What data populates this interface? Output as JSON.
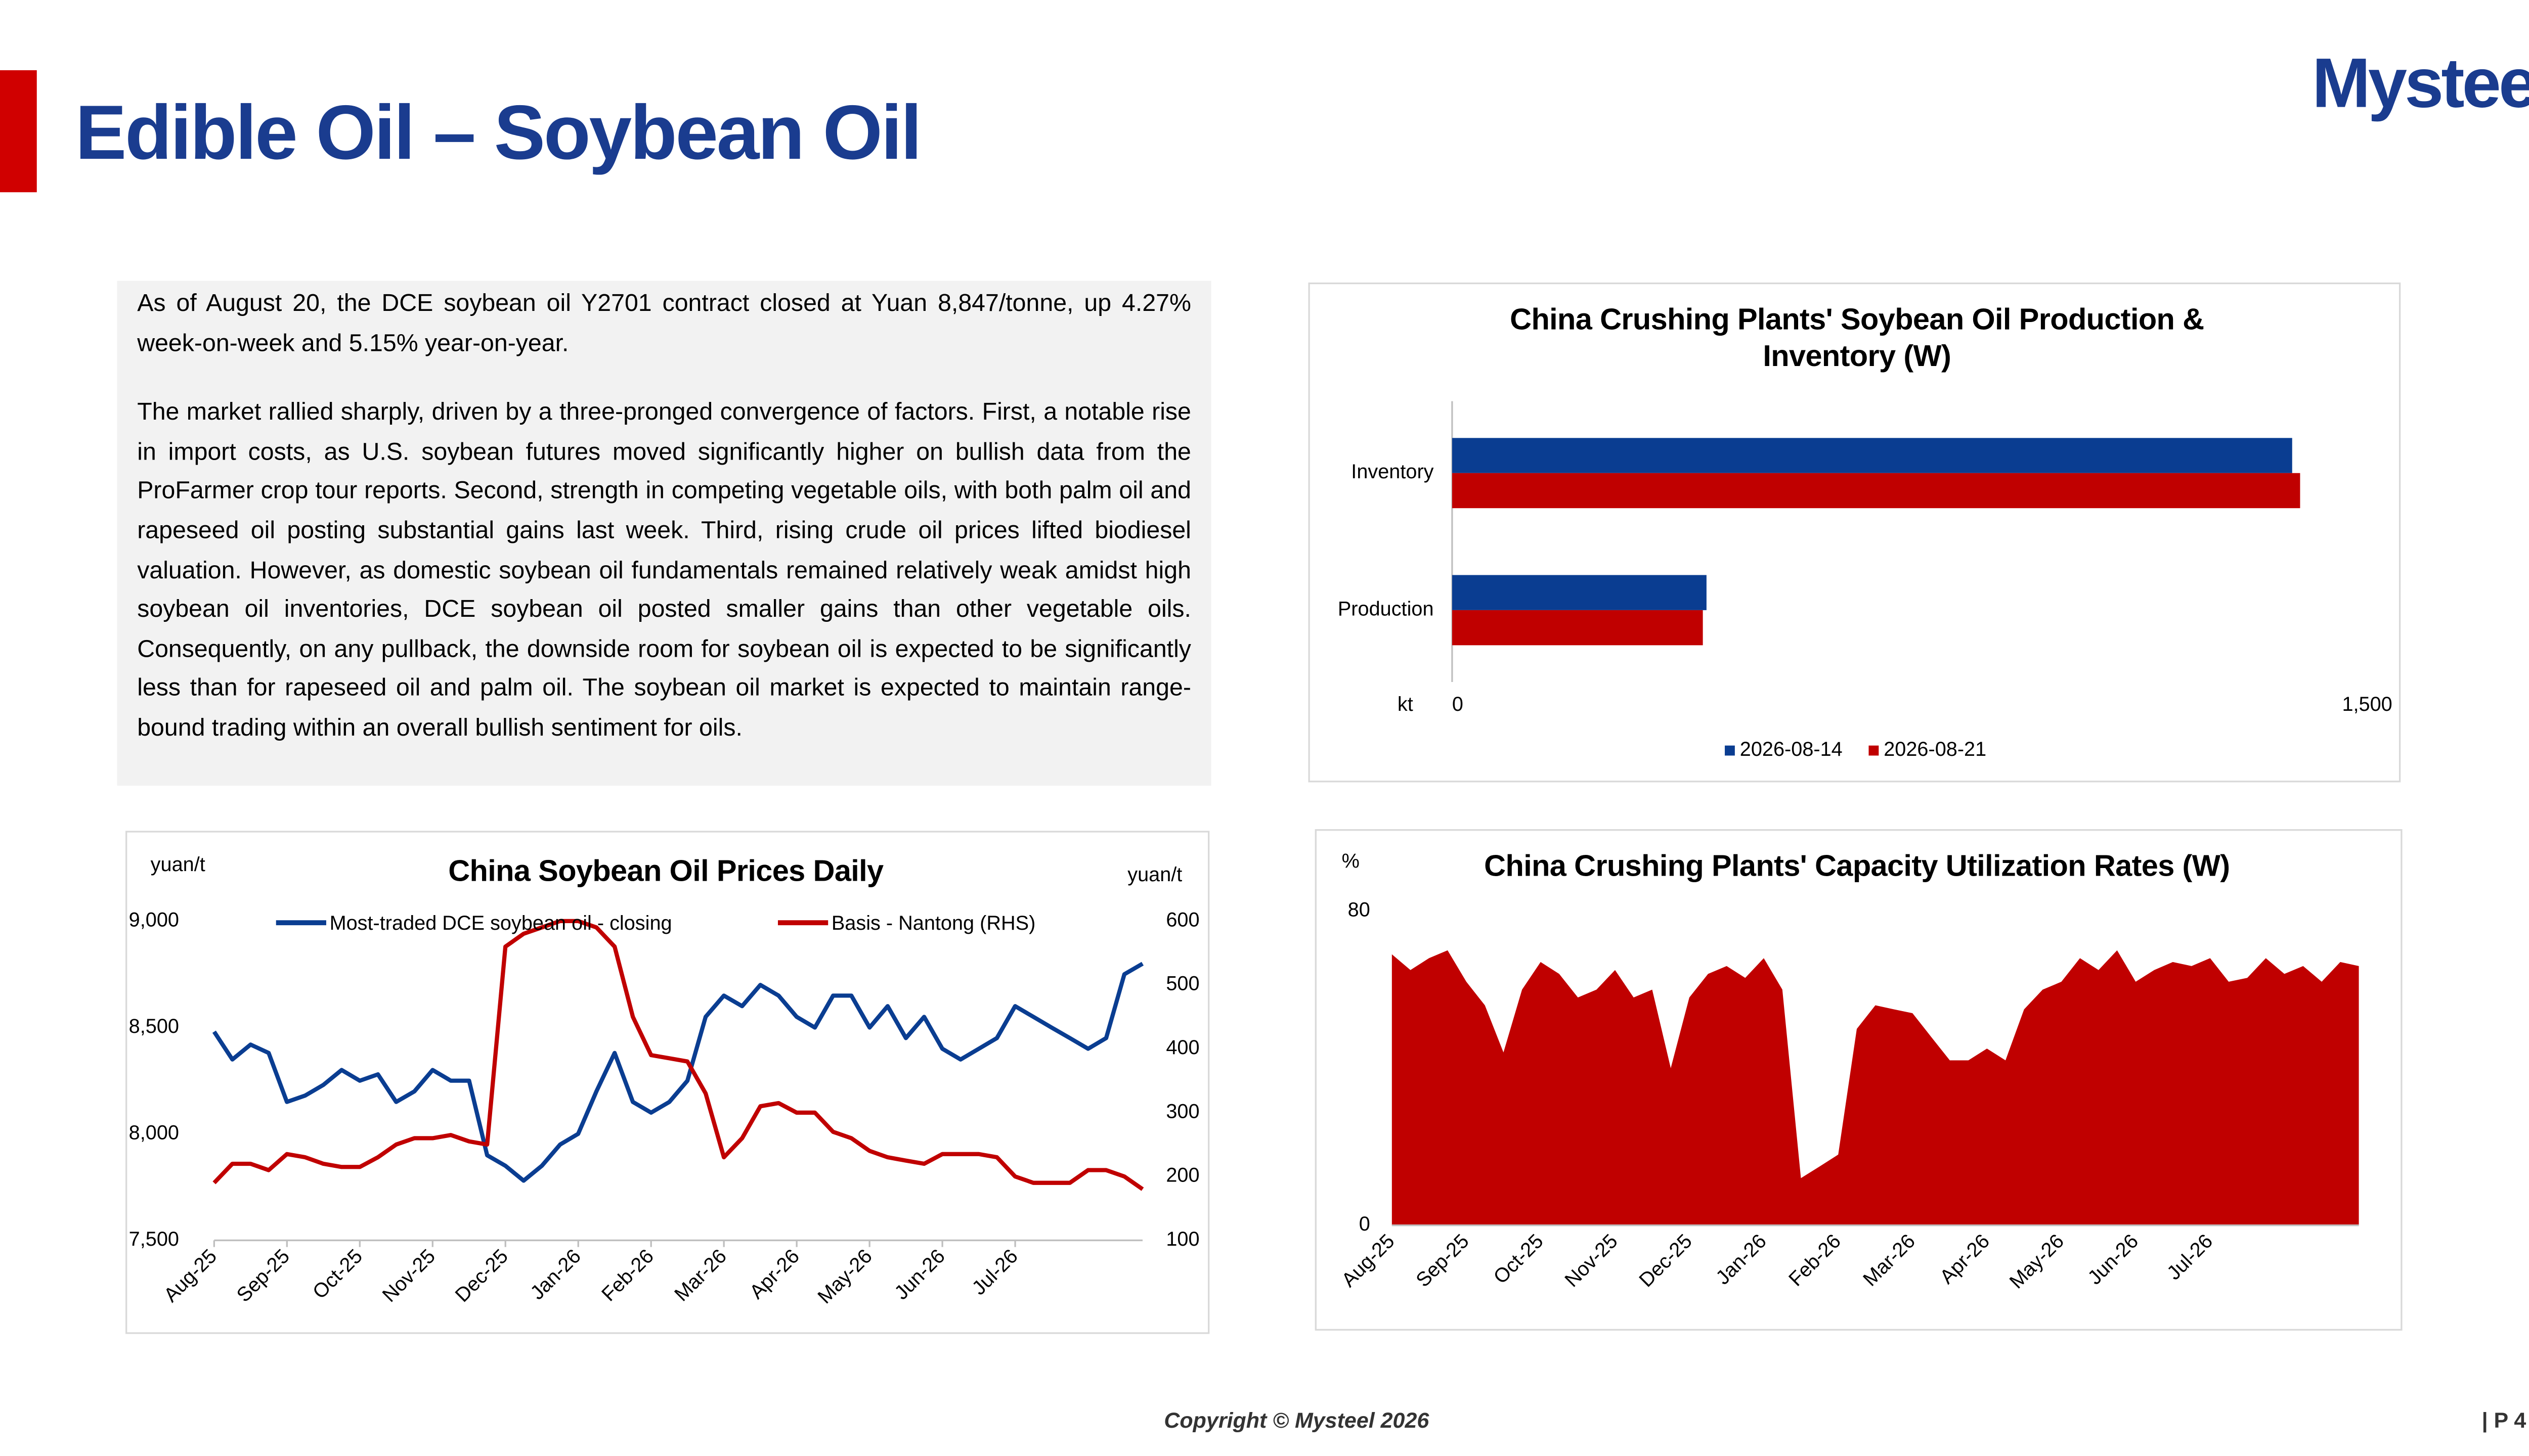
{
  "header": {
    "title": "Edible Oil – Soybean Oil",
    "logo": "Mysteel"
  },
  "summary": {
    "paragraphs": [
      "As of August 20, the DCE soybean oil Y2701 contract closed at Yuan 8,847/tonne, up 4.27% week-on-week and 5.15% year-on-year.",
      "The market rallied sharply, driven by a three-pronged convergence of factors. First, a notable rise in import costs, as U.S. soybean futures moved significantly higher on bullish data from the ProFarmer crop tour reports. Second, strength in competing vegetable oils, with both palm oil and rapeseed oil posting substantial gains last week. Third, rising crude oil prices lifted biodiesel valuation. However, as domestic soybean oil fundamentals remained relatively weak amidst high soybean oil inventories, DCE soybean oil posted smaller gains than other vegetable oils. Consequently, on any pullback, the downside room for soybean oil is expected to be significantly less than for rapeseed oil and palm oil. The soybean oil market is expected to maintain range-bound trading within an overall bullish sentiment for oils."
    ]
  },
  "footer": {
    "copyright": "Copyright © Mysteel 2026",
    "page": "| P 4"
  },
  "chart_data": [
    {
      "type": "bar",
      "orientation": "horizontal",
      "title": "China Crushing Plants' Soybean Oil Production & Inventory (W)",
      "categories": [
        "Inventory",
        "Production"
      ],
      "xlabel": "kt",
      "series": [
        {
          "name": "2026-08-14",
          "color": "#0a3d91",
          "values": [
            1377,
            417
          ]
        },
        {
          "name": "2026-08-21",
          "color": "#c00000",
          "values": [
            1390,
            411
          ]
        }
      ],
      "xlim": [
        0,
        1500
      ],
      "xticks": [
        0,
        {
          "value": 1500,
          "label": "1,500"
        }
      ],
      "legend": "bottom"
    },
    {
      "type": "line",
      "title": "China Soybean Oil Prices Daily",
      "ylabel": "yuan/t",
      "y2label": "yuan/t",
      "categories": [
        "Aug-25",
        null,
        null,
        null,
        "Sep-25",
        null,
        null,
        null,
        "Oct-25",
        null,
        null,
        null,
        "Nov-25",
        null,
        null,
        null,
        "Dec-25",
        null,
        null,
        null,
        "Jan-26",
        null,
        null,
        null,
        "Feb-26",
        null,
        null,
        null,
        "Mar-26",
        null,
        null,
        null,
        "Apr-26",
        null,
        null,
        null,
        "May-26",
        null,
        null,
        null,
        "Jun-26",
        null,
        null,
        null,
        "Jul-26",
        null,
        null,
        null,
        null,
        null,
        null,
        null
      ],
      "series": [
        {
          "name": "Most-traded DCE soybean oil - closing",
          "color": "#0a3d91",
          "values": [
            8480,
            8350,
            8420,
            8380,
            8150,
            8180,
            8230,
            8300,
            8250,
            8280,
            8150,
            8200,
            8300,
            8250,
            8250,
            7900,
            7850,
            7780,
            7850,
            7950,
            8000,
            8200,
            8380,
            8150,
            8100,
            8150,
            8250,
            8550,
            8650,
            8600,
            8700,
            8650,
            8550,
            8500,
            8650,
            8650,
            8500,
            8600,
            8450,
            8550,
            8400,
            8350,
            8400,
            8450,
            8600,
            8550,
            8500,
            8450,
            8400,
            8450,
            8750,
            8800
          ]
        },
        {
          "name": "Basis - Nantong (RHS)",
          "color": "#c00000",
          "axis": "y2",
          "values": [
            190,
            220,
            220,
            210,
            235,
            230,
            220,
            215,
            215,
            230,
            250,
            260,
            260,
            265,
            255,
            250,
            560,
            580,
            590,
            600,
            600,
            590,
            560,
            450,
            390,
            385,
            380,
            330,
            230,
            260,
            310,
            315,
            300,
            300,
            270,
            260,
            240,
            230,
            225,
            220,
            235,
            235,
            235,
            230,
            200,
            190,
            190,
            190,
            210,
            210,
            200,
            180
          ]
        }
      ],
      "ylim": [
        7500,
        9000
      ],
      "yticks": [
        {
          "value": 7500,
          "label": "7,500"
        },
        {
          "value": 8000,
          "label": "8,000"
        },
        {
          "value": 8500,
          "label": "8,500"
        },
        {
          "value": 9000,
          "label": "9,000"
        }
      ],
      "y2lim": [
        100,
        600
      ],
      "y2ticks": [
        100,
        200,
        300,
        400,
        500,
        600
      ],
      "legend": "top"
    },
    {
      "type": "area",
      "title": "China Crushing Plants' Capacity Utilization Rates (W)",
      "ylabel": "%",
      "color": "#c00000",
      "categories": [
        "Aug-25",
        null,
        null,
        null,
        "Sep-25",
        null,
        null,
        null,
        "Oct-25",
        null,
        null,
        null,
        "Nov-25",
        null,
        null,
        null,
        "Dec-25",
        null,
        null,
        null,
        "Jan-26",
        null,
        null,
        null,
        "Feb-26",
        null,
        null,
        null,
        "Mar-26",
        null,
        null,
        null,
        "Apr-26",
        null,
        null,
        null,
        "May-26",
        null,
        null,
        null,
        "Jun-26",
        null,
        null,
        null,
        "Jul-26",
        null,
        null,
        null,
        null,
        null,
        null,
        null,
        null
      ],
      "values": [
        69,
        65,
        68,
        70,
        62,
        56,
        44,
        60,
        67,
        64,
        58,
        60,
        65,
        58,
        60,
        40,
        58,
        64,
        66,
        63,
        68,
        60,
        12,
        15,
        18,
        50,
        56,
        55,
        54,
        48,
        42,
        42,
        45,
        42,
        55,
        60,
        62,
        68,
        65,
        70,
        62,
        65,
        67,
        66,
        68,
        62,
        63,
        68,
        64,
        66,
        62,
        67,
        66
      ],
      "ylim": [
        0,
        80
      ],
      "yticks": [
        0,
        80
      ]
    }
  ]
}
